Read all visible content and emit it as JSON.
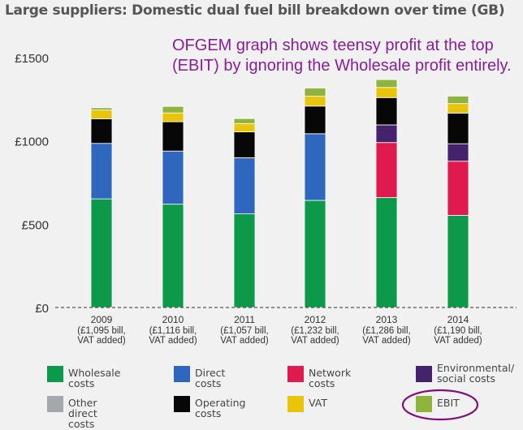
{
  "title": "Large suppliers: Domestic dual fuel bill breakdown over time (GB)",
  "annotation": "OFGEM graph shows teensy profit at the top\n(EBIT) by ignoring the Wholesale profit entirely.",
  "chart_data": {
    "type": "bar",
    "stacked": true,
    "categories": [
      "2009",
      "2010",
      "2011",
      "2012",
      "2013",
      "2014"
    ],
    "category_sublabels": [
      [
        "(£1,095 bill,",
        "VAT added)"
      ],
      [
        "(£1,116 bill,",
        "VAT added)"
      ],
      [
        "(£1,057 bill,",
        "VAT added)"
      ],
      [
        "(£1,232 bill,",
        "VAT added)"
      ],
      [
        "(£1,286 bill,",
        "VAT added)"
      ],
      [
        "(£1,190 bill,",
        "VAT added)"
      ]
    ],
    "ylim": [
      0,
      1500
    ],
    "yticks": [
      0,
      500,
      1000,
      1500
    ],
    "ytick_labels": [
      "£0",
      "£500",
      "£1000",
      "£1500"
    ],
    "series": [
      {
        "name": "Wholesale costs",
        "color": "#0c9a4a",
        "values": [
          652,
          620,
          562,
          643,
          660,
          553
        ]
      },
      {
        "name": "Direct costs",
        "color": "#2f67bf",
        "values": [
          333,
          319,
          337,
          400,
          0,
          0
        ]
      },
      {
        "name": "Network costs",
        "color": "#e0194f",
        "values": [
          0,
          0,
          0,
          0,
          330,
          325
        ]
      },
      {
        "name": "Environmental/\nsocial costs",
        "color": "#44226c",
        "values": [
          0,
          0,
          0,
          0,
          106,
          105
        ]
      },
      {
        "name": "Other direct costs",
        "color": "#a3a8ad",
        "values": [
          0,
          0,
          0,
          0,
          0,
          0
        ]
      },
      {
        "name": "Operating costs",
        "color": "#070707",
        "values": [
          148,
          176,
          155,
          166,
          164,
          184
        ]
      },
      {
        "name": "VAT",
        "color": "#e8c40a",
        "values": [
          52,
          53,
          50,
          59,
          61,
          57
        ]
      },
      {
        "name": "EBIT",
        "color": "#8eb43e",
        "values": [
          14,
          39,
          30,
          49,
          47,
          45
        ]
      }
    ],
    "highlighted_legend": "EBIT",
    "highlight_color": "#800d7b"
  }
}
